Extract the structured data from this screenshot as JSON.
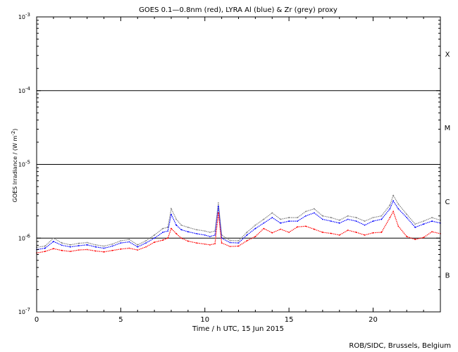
{
  "chart_data": {
    "type": "scatter",
    "title": "GOES 0.1—0.8nm (red), LYRA Al (blue) & Zr (grey) proxy",
    "xlabel": "Time / h UTC, 15 Jun 2015",
    "ylabel": "GOES Irradiance / (W m",
    "ylabel_exp": "-2",
    "ylabel_close": ")",
    "credit": "ROB/SIDC, Brussels, Belgium",
    "x_range": [
      0,
      24
    ],
    "y_range": [
      1e-07,
      0.001
    ],
    "y_scale": "log",
    "x_ticks": [
      0,
      5,
      10,
      15,
      20
    ],
    "x_tick_labels": [
      "0",
      "5",
      "10",
      "15",
      "20"
    ],
    "y_ticks": [
      {
        "value": 1e-07,
        "base": "10",
        "exp": "-7"
      },
      {
        "value": 1e-06,
        "base": "10",
        "exp": "-6"
      },
      {
        "value": 1e-05,
        "base": "10",
        "exp": "-5"
      },
      {
        "value": 0.0001,
        "base": "10",
        "exp": "-4"
      },
      {
        "value": 0.001,
        "base": "10",
        "exp": "-3"
      }
    ],
    "class_lines": [
      1e-06,
      1e-05,
      0.0001
    ],
    "flare_classes": [
      {
        "label": "B",
        "value": 3.16e-07
      },
      {
        "label": "C",
        "value": 3.16e-06
      },
      {
        "label": "M",
        "value": 3.16e-05
      },
      {
        "label": "X",
        "value": 0.000316
      }
    ],
    "series": [
      {
        "color": "#ff0000",
        "role": "GOES 0.1-0.8nm",
        "x": [
          0,
          0.5,
          1,
          1.5,
          2,
          2.5,
          3,
          3.5,
          4,
          4.5,
          5,
          5.5,
          6,
          6.5,
          7,
          7.5,
          7.8,
          8,
          8.3,
          8.6,
          9,
          9.5,
          10,
          10.3,
          10.6,
          10.8,
          11,
          11.5,
          12,
          12.5,
          13,
          13.5,
          14,
          14.5,
          15,
          15.5,
          16,
          16.5,
          17,
          17.5,
          18,
          18.5,
          19,
          19.5,
          20,
          20.5,
          21,
          21.2,
          21.5,
          22,
          22.5,
          23,
          23.5,
          24
        ],
        "y": [
          6.3e-07,
          6.6e-07,
          7.2e-07,
          6.8e-07,
          6.6e-07,
          6.9e-07,
          7e-07,
          6.7e-07,
          6.5e-07,
          6.8e-07,
          7.1e-07,
          7.3e-07,
          6.9e-07,
          7.6e-07,
          8.8e-07,
          9.4e-07,
          1e-06,
          1.35e-06,
          1.15e-06,
          1e-06,
          9.1e-07,
          8.6e-07,
          8.3e-07,
          8.1e-07,
          8.4e-07,
          2.2e-06,
          8.6e-07,
          7.7e-07,
          7.8e-07,
          9.2e-07,
          1.05e-06,
          1.35e-06,
          1.18e-06,
          1.32e-06,
          1.2e-06,
          1.42e-06,
          1.45e-06,
          1.32e-06,
          1.2e-06,
          1.16e-06,
          1.1e-06,
          1.28e-06,
          1.2e-06,
          1.1e-06,
          1.18e-06,
          1.2e-06,
          1.9e-06,
          2.3e-06,
          1.45e-06,
          1.05e-06,
          9.6e-07,
          1.02e-06,
          1.22e-06,
          1.15e-06
        ]
      },
      {
        "color": "#0000ff",
        "role": "LYRA Al",
        "x": [
          0,
          0.5,
          1,
          1.5,
          2,
          2.5,
          3,
          3.5,
          4,
          4.5,
          5,
          5.5,
          6,
          6.5,
          7,
          7.5,
          7.8,
          8,
          8.3,
          8.6,
          9,
          9.5,
          10,
          10.3,
          10.6,
          10.8,
          11,
          11.5,
          12,
          12.5,
          13,
          13.5,
          14,
          14.5,
          15,
          15.5,
          16,
          16.5,
          17,
          17.5,
          18,
          18.5,
          19,
          19.5,
          20,
          20.5,
          21,
          21.2,
          21.5,
          22,
          22.5,
          23,
          23.5,
          24
        ],
        "y": [
          7e-07,
          7.3e-07,
          9e-07,
          8e-07,
          7.6e-07,
          7.9e-07,
          8.1e-07,
          7.6e-07,
          7.3e-07,
          7.8e-07,
          8.6e-07,
          8.9e-07,
          7.6e-07,
          8.6e-07,
          1e-06,
          1.2e-06,
          1.25e-06,
          2.1e-06,
          1.5e-06,
          1.3e-06,
          1.22e-06,
          1.15e-06,
          1.1e-06,
          1.05e-06,
          1.1e-06,
          2.7e-06,
          1e-06,
          8.7e-07,
          8.6e-07,
          1.1e-06,
          1.35e-06,
          1.6e-06,
          1.9e-06,
          1.6e-06,
          1.7e-06,
          1.7e-06,
          2e-06,
          2.2e-06,
          1.8e-06,
          1.7e-06,
          1.6e-06,
          1.8e-06,
          1.7e-06,
          1.5e-06,
          1.7e-06,
          1.8e-06,
          2.5e-06,
          3.2e-06,
          2.5e-06,
          1.9e-06,
          1.4e-06,
          1.55e-06,
          1.7e-06,
          1.6e-06
        ]
      },
      {
        "color": "#808080",
        "role": "LYRA Zr",
        "x": [
          0,
          0.5,
          1,
          1.5,
          2,
          2.5,
          3,
          3.5,
          4,
          4.5,
          5,
          5.5,
          6,
          6.5,
          7,
          7.5,
          7.8,
          8,
          8.3,
          8.6,
          9,
          9.5,
          10,
          10.3,
          10.6,
          10.8,
          11,
          11.5,
          12,
          12.5,
          13,
          13.5,
          14,
          14.5,
          15,
          15.5,
          16,
          16.5,
          17,
          17.5,
          18,
          18.5,
          19,
          19.5,
          20,
          20.5,
          21,
          21.2,
          21.5,
          22,
          22.5,
          23,
          23.5,
          24
        ],
        "y": [
          7.5e-07,
          7.8e-07,
          1e-06,
          8.6e-07,
          8.1e-07,
          8.5e-07,
          8.7e-07,
          8.1e-07,
          7.8e-07,
          8.3e-07,
          9.2e-07,
          9.6e-07,
          8.1e-07,
          9.2e-07,
          1.1e-06,
          1.35e-06,
          1.4e-06,
          2.5e-06,
          1.8e-06,
          1.5e-06,
          1.4e-06,
          1.3e-06,
          1.25e-06,
          1.2e-06,
          1.25e-06,
          3e-06,
          1.1e-06,
          9.3e-07,
          9.2e-07,
          1.2e-06,
          1.5e-06,
          1.8e-06,
          2.2e-06,
          1.8e-06,
          1.9e-06,
          1.9e-06,
          2.3e-06,
          2.5e-06,
          2e-06,
          1.9e-06,
          1.75e-06,
          2e-06,
          1.9e-06,
          1.7e-06,
          1.9e-06,
          2e-06,
          2.8e-06,
          3.8e-06,
          2.9e-06,
          2.1e-06,
          1.55e-06,
          1.7e-06,
          1.9e-06,
          1.75e-06
        ]
      }
    ]
  }
}
